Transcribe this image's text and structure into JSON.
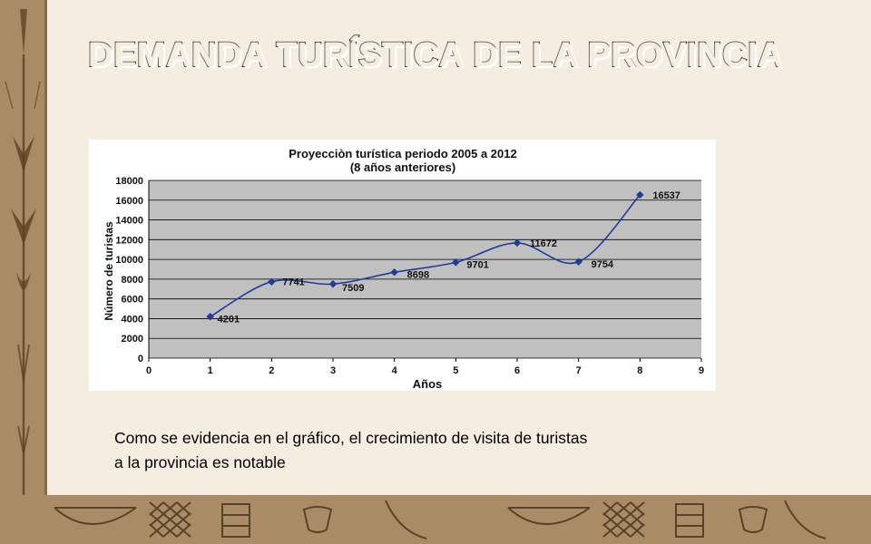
{
  "slide": {
    "title": "DEMANDA  TURÍSTICA DE LA PROVINCIA",
    "caption_line1": "Como se  evidencia en el gráfico,  el crecimiento de  visita de turistas",
    "caption_line2": "a la provincia es notable",
    "background_color": "#f5ede0",
    "border_color": "#a98c66"
  },
  "chart_data": {
    "type": "line",
    "title": "Proyecciòn turística periodo 2005 a 2012",
    "subtitle": "(8 años anteriores)",
    "xlabel": "Años",
    "ylabel": "Número de turistas",
    "x": [
      1,
      2,
      3,
      4,
      5,
      6,
      7,
      8
    ],
    "series": [
      {
        "values": [
          4201,
          7741,
          7509,
          8698,
          9701,
          11672,
          9754,
          16537
        ]
      }
    ],
    "data_labels": [
      "4201",
      "7741",
      "7509",
      "8698",
      "9701",
      "11672",
      "9754",
      "16537"
    ],
    "xlim": [
      0,
      9
    ],
    "ylim": [
      0,
      18000
    ],
    "x_ticks": [
      "0",
      "1",
      "2",
      "3",
      "4",
      "5",
      "6",
      "7",
      "8",
      "9"
    ],
    "y_ticks": [
      "0",
      "2000",
      "4000",
      "6000",
      "8000",
      "10000",
      "12000",
      "14000",
      "16000",
      "18000"
    ],
    "grid": true,
    "smoothed": true,
    "line_color": "#1f3c99",
    "plot_background": "#c0c0c0"
  }
}
